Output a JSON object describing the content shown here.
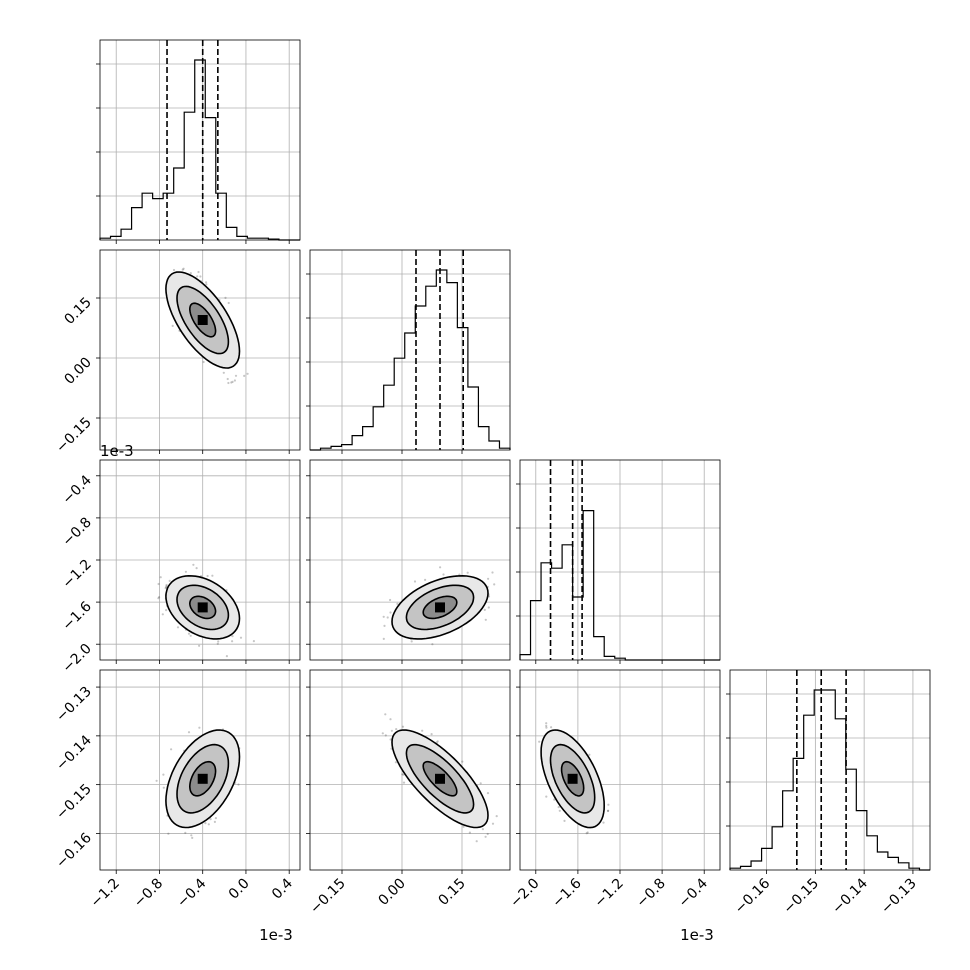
{
  "chart_data": {
    "type": "corner",
    "offset_labels": [
      "1e-3",
      "1e-3",
      "1e-3"
    ],
    "parameters": [
      {
        "range": [
          -1.35,
          0.5
        ],
        "ticks": [
          -1.2,
          -0.8,
          -0.4,
          0.0,
          0.4
        ],
        "tick_labels": [
          "−1.2",
          "−0.8",
          "−0.4",
          "0.0",
          "0.4"
        ],
        "quantiles": [
          -0.73,
          -0.4,
          -0.26
        ],
        "median": -0.4,
        "sigma": 0.17,
        "hist": [
          0.01,
          0.02,
          0.06,
          0.18,
          0.26,
          0.23,
          0.26,
          0.4,
          0.71,
          1.0,
          0.68,
          0.26,
          0.07,
          0.02,
          0.01,
          0.01,
          0.005,
          0.0,
          0.0
        ]
      },
      {
        "range": [
          -0.23,
          0.27
        ],
        "ticks": [
          -0.15,
          0.0,
          0.15
        ],
        "tick_labels": [
          "−0.15",
          "0.00",
          "0.15"
        ],
        "quantiles": [
          0.035,
          0.095,
          0.153
        ],
        "median": 0.095,
        "sigma": 0.06,
        "hist": [
          0.0,
          0.01,
          0.02,
          0.03,
          0.08,
          0.13,
          0.24,
          0.36,
          0.51,
          0.65,
          0.8,
          0.91,
          1.0,
          0.93,
          0.68,
          0.35,
          0.13,
          0.05,
          0.01
        ]
      },
      {
        "range": [
          -2.15,
          -0.25
        ],
        "ticks": [
          -2.0,
          -1.6,
          -1.2,
          -0.8,
          -0.4
        ],
        "tick_labels": [
          "−2.0",
          "−1.6",
          "−1.2",
          "−0.8",
          "−0.4"
        ],
        "quantiles": [
          -1.86,
          -1.65,
          -1.56
        ],
        "median": -1.65,
        "sigma": 0.15,
        "hist": [
          0.03,
          0.33,
          0.54,
          0.51,
          0.64,
          0.35,
          0.83,
          0.13,
          0.02,
          0.01,
          0.0,
          0.0,
          0.0,
          0.0,
          0.0,
          0.0,
          0.0,
          0.0,
          0.0
        ]
      },
      {
        "range": [
          -0.1675,
          -0.1265
        ],
        "ticks": [
          -0.16,
          -0.15,
          -0.14,
          -0.13
        ],
        "tick_labels": [
          "−0.16",
          "−0.15",
          "−0.14",
          "−0.13"
        ],
        "quantiles": [
          -0.1538,
          -0.1488,
          -0.1437
        ],
        "median": -0.1488,
        "sigma": 0.005,
        "hist": [
          0.01,
          0.02,
          0.05,
          0.12,
          0.24,
          0.44,
          0.62,
          0.86,
          1.0,
          1.0,
          0.84,
          0.56,
          0.33,
          0.19,
          0.1,
          0.07,
          0.04,
          0.01,
          0.0
        ]
      }
    ],
    "pairs": [
      {
        "row": 1,
        "col": 0,
        "corr": -0.65
      },
      {
        "row": 2,
        "col": 0,
        "corr": -0.35
      },
      {
        "row": 2,
        "col": 1,
        "corr": 0.45
      },
      {
        "row": 3,
        "col": 0,
        "corr": 0.45
      },
      {
        "row": 3,
        "col": 1,
        "corr": -0.75
      },
      {
        "row": 3,
        "col": 2,
        "corr": -0.55
      }
    ]
  }
}
